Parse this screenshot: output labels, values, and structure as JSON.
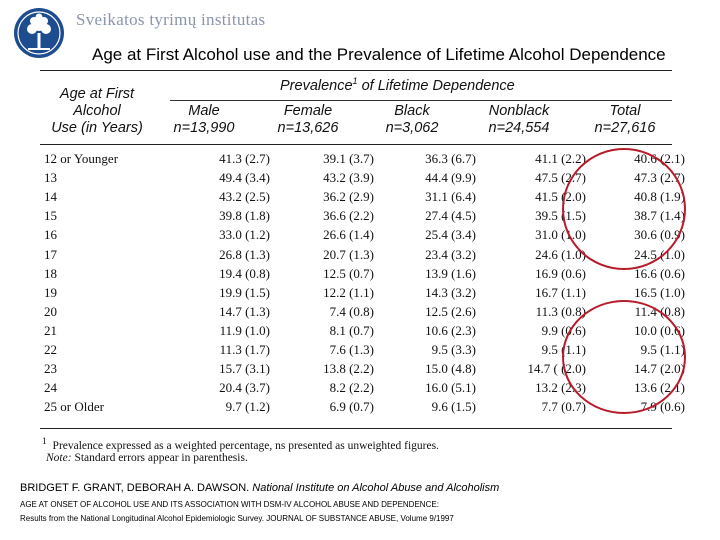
{
  "institute": "Sveikatos tyrimų institutas",
  "title": "Age at First Alcohol use and the Prevalence of Lifetime Alcohol Dependence",
  "prevalence_header": {
    "text": "Prevalence",
    "sup": "1",
    "rest": " of Lifetime Dependence"
  },
  "columns": [
    {
      "line1": "Age at First",
      "line2": "Alcohol",
      "line3": "Use (in Years)"
    },
    {
      "line1": "Male",
      "line2": "n=13,990"
    },
    {
      "line1": "Female",
      "line2": "n=13,626"
    },
    {
      "line1": "Black",
      "line2": "n=3,062"
    },
    {
      "line1": "Nonblack",
      "line2": "n=24,554"
    },
    {
      "line1": "Total",
      "line2": "n=27,616"
    }
  ],
  "rows": [
    {
      "age": "12 or Younger",
      "male": "41.3 (2.7)",
      "female": "39.1 (3.7)",
      "black": "36.3 (6.7)",
      "nonblack": "41.1 (2.2)",
      "total": "40.6 (2.1)"
    },
    {
      "age": "13",
      "male": "49.4 (3.4)",
      "female": "43.2 (3.9)",
      "black": "44.4 (9.9)",
      "nonblack": "47.5 (2.7)",
      "total": "47.3 (2.7)"
    },
    {
      "age": "14",
      "male": "43.2 (2.5)",
      "female": "36.2 (2.9)",
      "black": "31.1 (6.4)",
      "nonblack": "41.5 (2.0)",
      "total": "40.8 (1.9)"
    },
    {
      "age": "15",
      "male": "39.8 (1.8)",
      "female": "36.6 (2.2)",
      "black": "27.4 (4.5)",
      "nonblack": "39.5 (1.5)",
      "total": "38.7 (1.4)"
    },
    {
      "age": "16",
      "male": "33.0 (1.2)",
      "female": "26.6 (1.4)",
      "black": "25.4 (3.4)",
      "nonblack": "31.0 (1.0)",
      "total": "30.6 (0.9)"
    },
    {
      "age": "17",
      "male": "26.8 (1.3)",
      "female": "20.7 (1.3)",
      "black": "23.4 (3.2)",
      "nonblack": "24.6 (1.0)",
      "total": "24.5 (1.0)"
    },
    {
      "age": "18",
      "male": "19.4 (0.8)",
      "female": "12.5 (0.7)",
      "black": "13.9 (1.6)",
      "nonblack": "16.9 (0.6)",
      "total": "16.6 (0.6)"
    },
    {
      "age": "19",
      "male": "19.9 (1.5)",
      "female": "12.2 (1.1)",
      "black": "14.3 (3.2)",
      "nonblack": "16.7 (1.1)",
      "total": "16.5 (1.0)"
    },
    {
      "age": "20",
      "male": "14.7 (1.3)",
      "female": "7.4 (0.8)",
      "black": "12.5 (2.6)",
      "nonblack": "11.3 (0.8)",
      "total": "11.4 (0.8)"
    },
    {
      "age": "21",
      "male": "11.9 (1.0)",
      "female": "8.1 (0.7)",
      "black": "10.6 (2.3)",
      "nonblack": "9.9 (0.6)",
      "total": "10.0 (0.6)"
    },
    {
      "age": "22",
      "male": "11.3 (1.7)",
      "female": "7.6 (1.3)",
      "black": "9.5 (3.3)",
      "nonblack": "9.5 (1.1)",
      "total": "9.5 (1.1)"
    },
    {
      "age": "23",
      "male": "15.7 (3.1)",
      "female": "13.8 (2.2)",
      "black": "15.0 (4.8)",
      "nonblack": "14.7 ( (2.0)",
      "total": "14.7 (2.0)"
    },
    {
      "age": "24",
      "male": "20.4 (3.7)",
      "female": "8.2 (2.2)",
      "black": "16.0 (5.1)",
      "nonblack": "13.2 (2.3)",
      "total": "13.6 (2.1)"
    },
    {
      "age": "25 or Older",
      "male": "9.7 (1.2)",
      "female": "6.9 (0.7)",
      "black": "9.6 (1.5)",
      "nonblack": "7.7 (0.7)",
      "total": "7.9 (0.6)"
    }
  ],
  "footnote1": {
    "mark": "1",
    "text": "Prevalence expressed as a weighted percentage, ns presented as unweighted figures."
  },
  "footnote2": {
    "label": "Note:",
    "text": " Standard errors appear in parenthesis."
  },
  "citation": {
    "authors": "BRIDGET F. GRANT, DEBORAH A. DAWSON.",
    "source": " National Institute on Alcohol Abuse and Alcoholism",
    "line2": "AGE AT ONSET OF ALCOHOL USE AND ITS ASSOCIATION WITH DSM-IV ALCOHOL ABUSE AND DEPENDENCE:",
    "line3": "Results from the National Longitudinal Alcohol Epidemiologic Survey. JOURNAL OF SUBSTANCE ABUSE, Volume 9/1997"
  },
  "highlight_color": "#b71c2a",
  "logo_color": "#1e4d8f"
}
